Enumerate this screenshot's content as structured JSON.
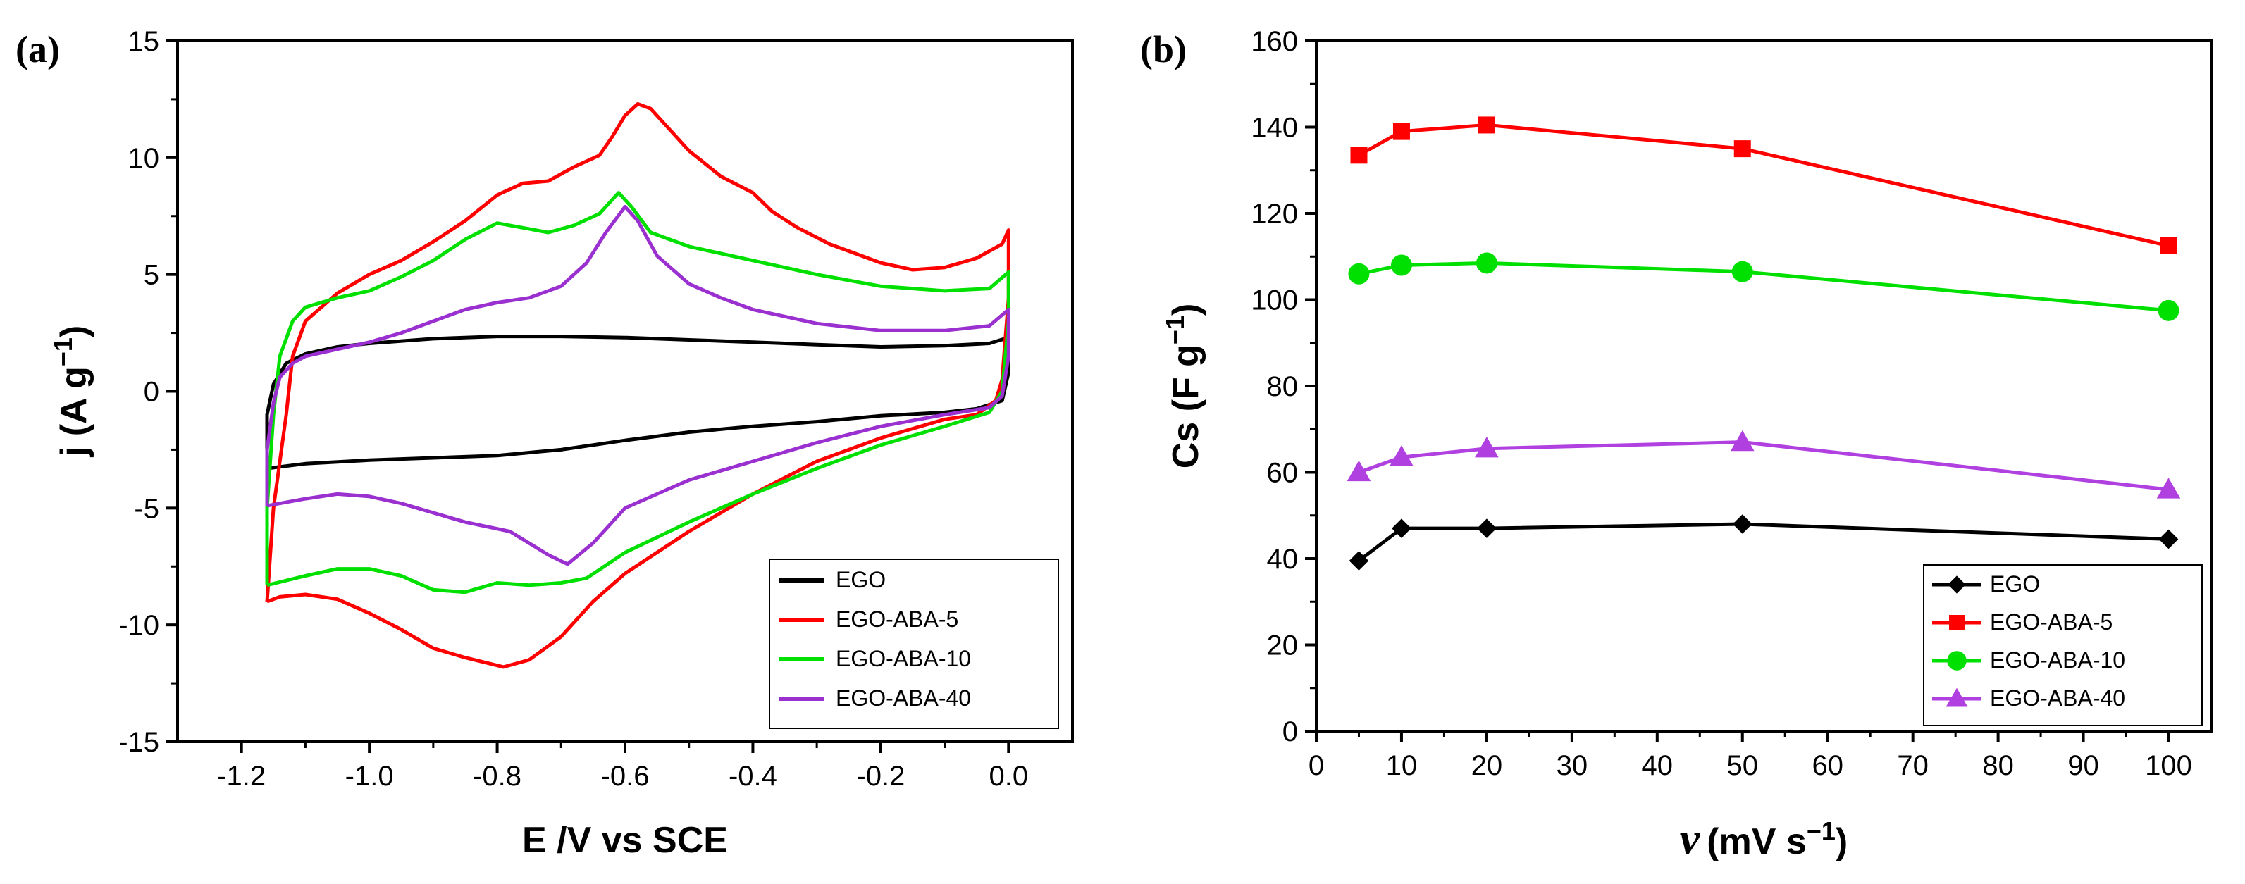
{
  "chart_data": [
    {
      "type": "line",
      "panel_label": "(a)",
      "title": "",
      "xlabel": "E /V vs SCE",
      "ylabel_main": "j (A g",
      "ylabel_sup": "−1",
      "ylabel_close": ")",
      "xlim": [
        -1.3,
        0.1
      ],
      "ylim": [
        -15,
        15
      ],
      "x_ticks": [
        -1.2,
        -1.0,
        -0.8,
        -0.6,
        -0.4,
        -0.2,
        0.0
      ],
      "x_tick_labels": [
        "-1.2",
        "-1.0",
        "-0.8",
        "-0.6",
        "-0.4",
        "-0.2",
        "0.0"
      ],
      "y_ticks": [
        -15,
        -10,
        -5,
        0,
        5,
        10,
        15
      ],
      "y_tick_labels": [
        "-15",
        "-10",
        "-5",
        "0",
        "5",
        "10",
        "15"
      ],
      "legend_position": "bottom-right",
      "series": [
        {
          "name": "EGO",
          "color": "#000000",
          "points": [
            [
              -1.16,
              -3.3
            ],
            [
              -1.16,
              -1.0
            ],
            [
              -1.15,
              0.3
            ],
            [
              -1.13,
              1.2
            ],
            [
              -1.1,
              1.6
            ],
            [
              -1.05,
              1.9
            ],
            [
              -1.0,
              2.05
            ],
            [
              -0.9,
              2.25
            ],
            [
              -0.8,
              2.35
            ],
            [
              -0.7,
              2.35
            ],
            [
              -0.6,
              2.3
            ],
            [
              -0.5,
              2.2
            ],
            [
              -0.4,
              2.1
            ],
            [
              -0.3,
              2.0
            ],
            [
              -0.2,
              1.9
            ],
            [
              -0.1,
              1.95
            ],
            [
              -0.03,
              2.05
            ],
            [
              0.0,
              2.3
            ],
            [
              0.0,
              0.8
            ],
            [
              -0.01,
              -0.4
            ],
            [
              -0.05,
              -0.75
            ],
            [
              -0.1,
              -0.9
            ],
            [
              -0.2,
              -1.05
            ],
            [
              -0.3,
              -1.3
            ],
            [
              -0.4,
              -1.5
            ],
            [
              -0.5,
              -1.75
            ],
            [
              -0.6,
              -2.1
            ],
            [
              -0.7,
              -2.5
            ],
            [
              -0.8,
              -2.75
            ],
            [
              -0.9,
              -2.85
            ],
            [
              -1.0,
              -2.95
            ],
            [
              -1.1,
              -3.1
            ],
            [
              -1.16,
              -3.3
            ]
          ]
        },
        {
          "name": "EGO-ABA-5",
          "color": "#ff0000",
          "points": [
            [
              -1.16,
              -9.0
            ],
            [
              -1.15,
              -5.0
            ],
            [
              -1.13,
              -1.0
            ],
            [
              -1.12,
              1.5
            ],
            [
              -1.1,
              3.0
            ],
            [
              -1.05,
              4.2
            ],
            [
              -1.0,
              5.0
            ],
            [
              -0.95,
              5.6
            ],
            [
              -0.9,
              6.4
            ],
            [
              -0.85,
              7.3
            ],
            [
              -0.8,
              8.4
            ],
            [
              -0.76,
              8.9
            ],
            [
              -0.72,
              9.0
            ],
            [
              -0.68,
              9.6
            ],
            [
              -0.64,
              10.1
            ],
            [
              -0.62,
              10.9
            ],
            [
              -0.6,
              11.8
            ],
            [
              -0.58,
              12.3
            ],
            [
              -0.56,
              12.1
            ],
            [
              -0.53,
              11.2
            ],
            [
              -0.5,
              10.3
            ],
            [
              -0.45,
              9.2
            ],
            [
              -0.4,
              8.5
            ],
            [
              -0.37,
              7.7
            ],
            [
              -0.33,
              7.0
            ],
            [
              -0.28,
              6.3
            ],
            [
              -0.2,
              5.5
            ],
            [
              -0.15,
              5.2
            ],
            [
              -0.1,
              5.3
            ],
            [
              -0.05,
              5.7
            ],
            [
              -0.01,
              6.3
            ],
            [
              0.0,
              6.9
            ],
            [
              0.0,
              4.0
            ],
            [
              -0.01,
              0.5
            ],
            [
              -0.02,
              -0.4
            ],
            [
              -0.05,
              -1.0
            ],
            [
              -0.1,
              -1.2
            ],
            [
              -0.2,
              -2.0
            ],
            [
              -0.3,
              -3.0
            ],
            [
              -0.4,
              -4.4
            ],
            [
              -0.5,
              -6.0
            ],
            [
              -0.6,
              -7.8
            ],
            [
              -0.65,
              -9.0
            ],
            [
              -0.7,
              -10.5
            ],
            [
              -0.75,
              -11.5
            ],
            [
              -0.79,
              -11.8
            ],
            [
              -0.85,
              -11.4
            ],
            [
              -0.9,
              -11.0
            ],
            [
              -0.95,
              -10.2
            ],
            [
              -1.0,
              -9.5
            ],
            [
              -1.05,
              -8.9
            ],
            [
              -1.1,
              -8.7
            ],
            [
              -1.14,
              -8.8
            ],
            [
              -1.16,
              -9.0
            ]
          ]
        },
        {
          "name": "EGO-ABA-10",
          "color": "#00e000",
          "points": [
            [
              -1.16,
              -8.3
            ],
            [
              -1.16,
              -5.0
            ],
            [
              -1.15,
              -1.0
            ],
            [
              -1.14,
              1.5
            ],
            [
              -1.12,
              3.0
            ],
            [
              -1.1,
              3.6
            ],
            [
              -1.05,
              4.0
            ],
            [
              -1.0,
              4.3
            ],
            [
              -0.95,
              4.9
            ],
            [
              -0.9,
              5.6
            ],
            [
              -0.85,
              6.5
            ],
            [
              -0.8,
              7.2
            ],
            [
              -0.76,
              7.0
            ],
            [
              -0.72,
              6.8
            ],
            [
              -0.68,
              7.1
            ],
            [
              -0.64,
              7.6
            ],
            [
              -0.61,
              8.5
            ],
            [
              -0.59,
              7.9
            ],
            [
              -0.56,
              6.8
            ],
            [
              -0.5,
              6.2
            ],
            [
              -0.4,
              5.6
            ],
            [
              -0.3,
              5.0
            ],
            [
              -0.2,
              4.5
            ],
            [
              -0.1,
              4.3
            ],
            [
              -0.03,
              4.4
            ],
            [
              0.0,
              5.1
            ],
            [
              0.0,
              3.0
            ],
            [
              -0.01,
              0.0
            ],
            [
              -0.03,
              -0.9
            ],
            [
              -0.1,
              -1.5
            ],
            [
              -0.2,
              -2.3
            ],
            [
              -0.3,
              -3.3
            ],
            [
              -0.4,
              -4.4
            ],
            [
              -0.5,
              -5.6
            ],
            [
              -0.6,
              -6.9
            ],
            [
              -0.66,
              -8.0
            ],
            [
              -0.7,
              -8.2
            ],
            [
              -0.75,
              -8.3
            ],
            [
              -0.8,
              -8.2
            ],
            [
              -0.85,
              -8.6
            ],
            [
              -0.9,
              -8.5
            ],
            [
              -0.95,
              -7.9
            ],
            [
              -1.0,
              -7.6
            ],
            [
              -1.05,
              -7.6
            ],
            [
              -1.1,
              -7.9
            ],
            [
              -1.16,
              -8.3
            ]
          ]
        },
        {
          "name": "EGO-ABA-40",
          "color": "#9b30d0",
          "points": [
            [
              -1.16,
              -4.9
            ],
            [
              -1.16,
              -2.5
            ],
            [
              -1.15,
              -0.5
            ],
            [
              -1.14,
              0.6
            ],
            [
              -1.12,
              1.2
            ],
            [
              -1.1,
              1.5
            ],
            [
              -1.05,
              1.8
            ],
            [
              -1.0,
              2.1
            ],
            [
              -0.95,
              2.5
            ],
            [
              -0.9,
              3.0
            ],
            [
              -0.85,
              3.5
            ],
            [
              -0.8,
              3.8
            ],
            [
              -0.75,
              4.0
            ],
            [
              -0.7,
              4.5
            ],
            [
              -0.66,
              5.5
            ],
            [
              -0.63,
              6.8
            ],
            [
              -0.6,
              7.9
            ],
            [
              -0.58,
              7.3
            ],
            [
              -0.55,
              5.8
            ],
            [
              -0.5,
              4.6
            ],
            [
              -0.45,
              4.0
            ],
            [
              -0.4,
              3.5
            ],
            [
              -0.3,
              2.9
            ],
            [
              -0.2,
              2.6
            ],
            [
              -0.1,
              2.6
            ],
            [
              -0.03,
              2.8
            ],
            [
              0.0,
              3.5
            ],
            [
              0.0,
              1.5
            ],
            [
              -0.01,
              -0.2
            ],
            [
              -0.03,
              -0.7
            ],
            [
              -0.1,
              -1.0
            ],
            [
              -0.2,
              -1.5
            ],
            [
              -0.3,
              -2.2
            ],
            [
              -0.4,
              -3.0
            ],
            [
              -0.5,
              -3.8
            ],
            [
              -0.6,
              -5.0
            ],
            [
              -0.65,
              -6.5
            ],
            [
              -0.69,
              -7.4
            ],
            [
              -0.72,
              -7.0
            ],
            [
              -0.78,
              -6.0
            ],
            [
              -0.85,
              -5.6
            ],
            [
              -0.9,
              -5.2
            ],
            [
              -0.95,
              -4.8
            ],
            [
              -1.0,
              -4.5
            ],
            [
              -1.05,
              -4.4
            ],
            [
              -1.1,
              -4.6
            ],
            [
              -1.16,
              -4.9
            ]
          ]
        }
      ]
    },
    {
      "type": "line",
      "panel_label": "(b)",
      "title": "",
      "xlabel_symbol": "ν",
      "xlabel_unit": "(mV s",
      "xlabel_sup": "−1",
      "xlabel_close": ")",
      "ylabel_main": "Cs (F g",
      "ylabel_sup": "−1",
      "ylabel_close": ")",
      "xlim": [
        0,
        105
      ],
      "ylim": [
        0,
        160
      ],
      "x_ticks": [
        0,
        10,
        20,
        30,
        40,
        50,
        60,
        70,
        80,
        90,
        100
      ],
      "x_tick_labels": [
        "0",
        "10",
        "20",
        "30",
        "40",
        "50",
        "60",
        "70",
        "80",
        "90",
        "100"
      ],
      "y_ticks": [
        0,
        20,
        40,
        60,
        80,
        100,
        120,
        140,
        160
      ],
      "y_tick_labels": [
        "0",
        "20",
        "40",
        "60",
        "80",
        "100",
        "120",
        "140",
        "160"
      ],
      "legend_position": "bottom-right",
      "x": [
        5,
        10,
        20,
        50,
        100
      ],
      "series": [
        {
          "name": "EGO",
          "color": "#000000",
          "marker": "diamond",
          "values": [
            39.5,
            47,
            47,
            48,
            44.5
          ]
        },
        {
          "name": "EGO-ABA-5",
          "color": "#ff0000",
          "marker": "square",
          "values": [
            133.5,
            139,
            140.5,
            135,
            112.5
          ]
        },
        {
          "name": "EGO-ABA-10",
          "color": "#00e000",
          "marker": "circle",
          "values": [
            106,
            108,
            108.5,
            106.5,
            97.5
          ]
        },
        {
          "name": "EGO-ABA-40",
          "color": "#b040e0",
          "marker": "triangle",
          "values": [
            60,
            63.5,
            65.5,
            67,
            56
          ]
        }
      ]
    }
  ]
}
